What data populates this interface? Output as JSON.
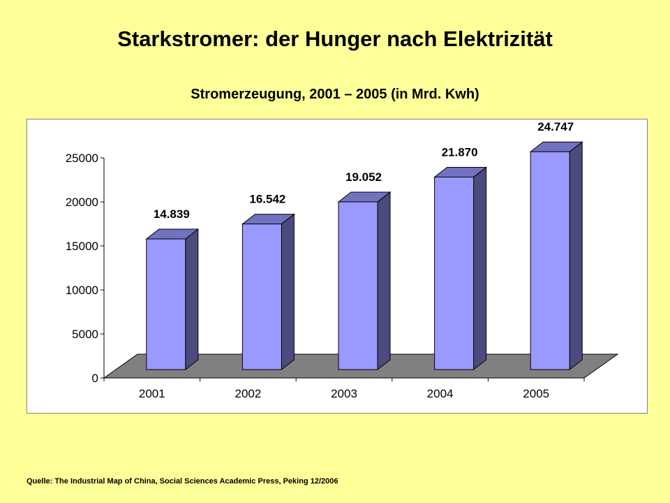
{
  "page": {
    "title": "Starkstromer: der Hunger nach Elektrizität",
    "subtitle": "Stromerzeugung, 2001 – 2005 (in Mrd. Kwh)",
    "source": "Quelle: The Industrial Map of China, Social Sciences Academic Press, Peking 12/2006"
  },
  "colors": {
    "background": "#FFFF99",
    "bar_front": "#9999FF",
    "bar_side": "#4B4B7E",
    "bar_top": "#7272C0",
    "floor": "#808080"
  },
  "chart_data": {
    "type": "bar",
    "style": "3d-column",
    "categories": [
      "2001",
      "2002",
      "2003",
      "2004",
      "2005"
    ],
    "values": [
      14839,
      16542,
      19052,
      21870,
      24747
    ],
    "data_labels": [
      "14.839",
      "16.542",
      "19.052",
      "21.870",
      "24.747"
    ],
    "title": "Stromerzeugung, 2001 – 2005 (in Mrd. Kwh)",
    "xlabel": "",
    "ylabel": "",
    "ylim": [
      0,
      25000
    ],
    "yticks": [
      0,
      5000,
      10000,
      15000,
      20000,
      25000
    ],
    "grid": false,
    "legend": "none"
  }
}
